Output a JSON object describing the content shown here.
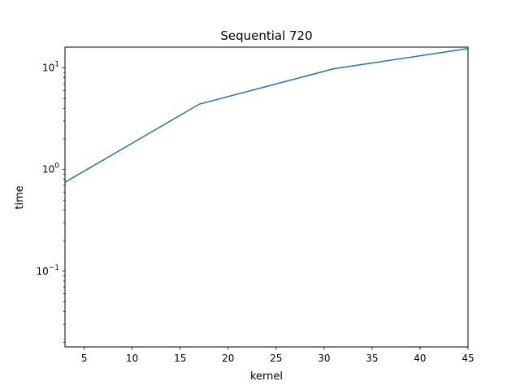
{
  "chart_data": {
    "type": "line",
    "title": "Sequential 720",
    "xlabel": "kernel",
    "ylabel": "time",
    "xlim": [
      3,
      45
    ],
    "ylim": [
      0.018,
      16
    ],
    "yscale": "log",
    "grid": false,
    "x_ticks": [
      5,
      10,
      15,
      20,
      25,
      30,
      35,
      40,
      45
    ],
    "y_ticks": [
      {
        "value": 0.1,
        "base": "10",
        "exp": "−1"
      },
      {
        "value": 1,
        "base": "10",
        "exp": "0"
      },
      {
        "value": 10,
        "base": "10",
        "exp": "1"
      }
    ],
    "series": [
      {
        "color": "#1f77b4",
        "x": [
          3,
          17,
          31,
          45
        ],
        "y": [
          0.75,
          4.4,
          9.8,
          15.5
        ]
      }
    ]
  }
}
